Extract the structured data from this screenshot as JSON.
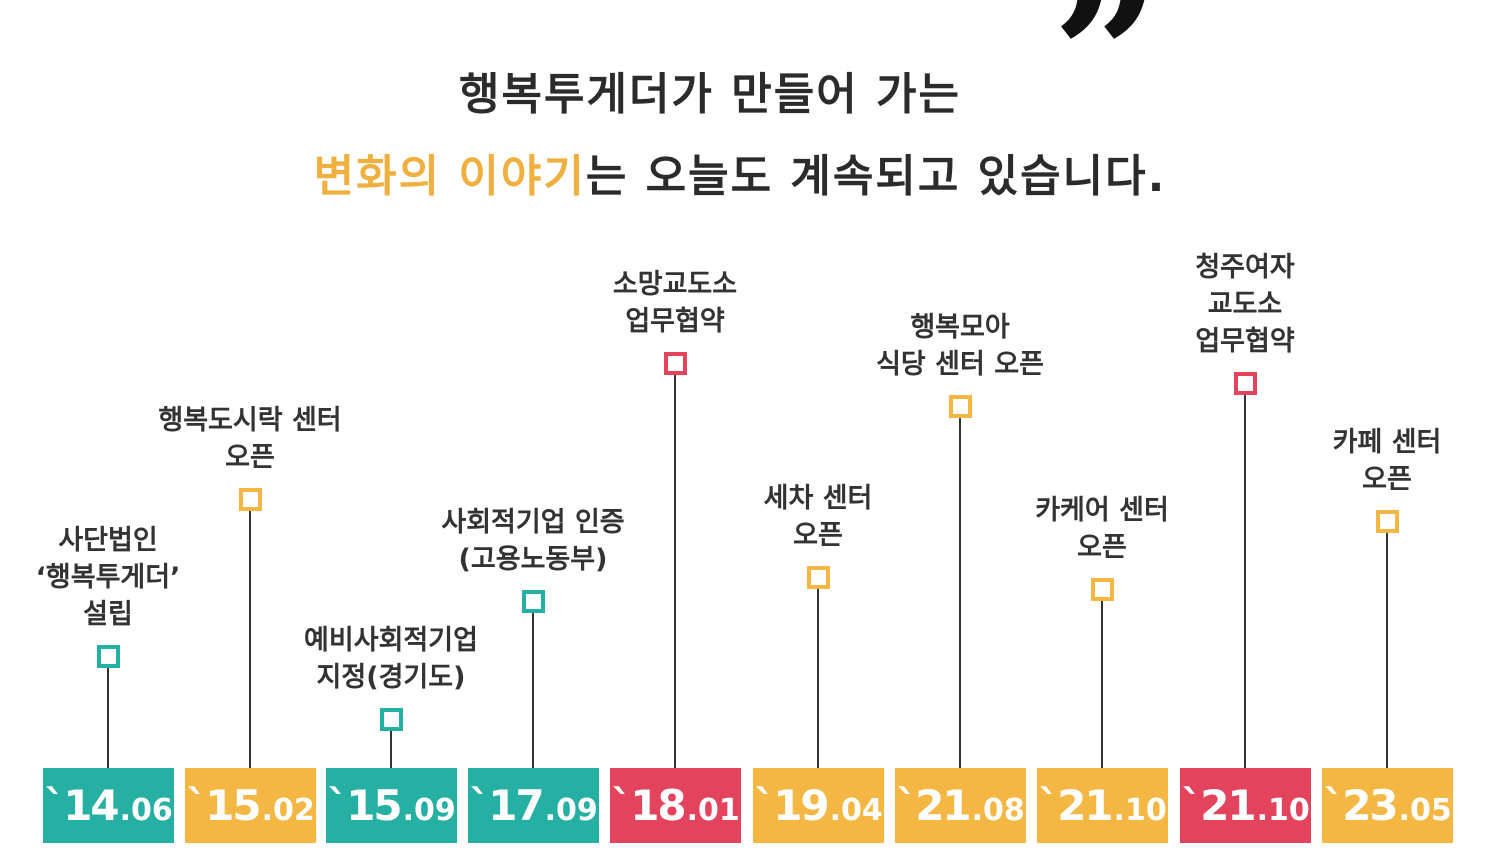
{
  "heading": {
    "line1": "행복투게더가 만들어 가는",
    "line2_highlight": "변화의 이야기",
    "line2_rest": "는 오늘도 계속되고 있습니다.",
    "quote_mark": "”",
    "highlight_color": "#f0b040"
  },
  "colors": {
    "teal": "#26b0a4",
    "orange": "#f5b744",
    "red": "#e3435d"
  },
  "timeline": [
    {
      "year": "`14",
      "month": ".06",
      "color": "teal",
      "label": [
        "사단법인",
        "‘행복투게더’",
        "설립"
      ]
    },
    {
      "year": "`15",
      "month": ".02",
      "color": "orange",
      "label": [
        "행복도시락 센터",
        "오픈"
      ]
    },
    {
      "year": "`15",
      "month": ".09",
      "color": "teal",
      "label": [
        "예비사회적기업",
        "지정(경기도)"
      ]
    },
    {
      "year": "`17",
      "month": ".09",
      "color": "teal",
      "label": [
        "사회적기업 인증",
        "(고용노동부)"
      ]
    },
    {
      "year": "`18",
      "month": ".01",
      "color": "red",
      "label": [
        "소망교도소",
        "업무협약"
      ]
    },
    {
      "year": "`19",
      "month": ".04",
      "color": "orange",
      "label": [
        "세차 센터",
        "오픈"
      ]
    },
    {
      "year": "`21",
      "month": ".08",
      "color": "orange",
      "label": [
        "행복모아",
        "식당 센터 오픈"
      ]
    },
    {
      "year": "`21",
      "month": ".10",
      "color": "orange",
      "label": [
        "카케어 센터",
        "오픈"
      ]
    },
    {
      "year": "`21",
      "month": ".10",
      "color": "red",
      "label": [
        "청주여자",
        "교도소",
        "업무협약"
      ]
    },
    {
      "year": "`23",
      "month": ".05",
      "color": "orange",
      "label": [
        "카페 센터",
        "오픈"
      ]
    }
  ]
}
